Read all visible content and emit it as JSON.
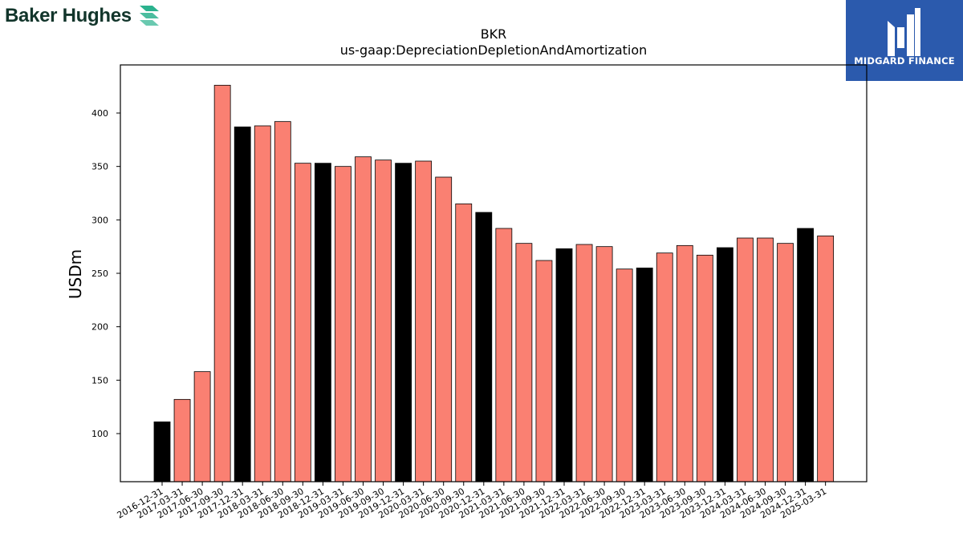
{
  "header": {
    "company_logo_text": "Baker Hughes",
    "badge_text": "MIDGARD FINANCE"
  },
  "colors": {
    "bar_default": "#fa8072",
    "bar_highlight": "#000000",
    "bar_edge": "#000000",
    "badge_bg": "#2b5aad",
    "brand_mark": "#2bb28e"
  },
  "chart_data": {
    "type": "bar",
    "title": "BKR",
    "subtitle": "us-gaap:DepreciationDepletionAndAmortization",
    "xlabel": "",
    "ylabel": "USDm",
    "ylim": [
      55,
      445
    ],
    "yticks": [
      100,
      150,
      200,
      250,
      300,
      350,
      400
    ],
    "grid": false,
    "categories": [
      "2016-12-31",
      "2017-03-31",
      "2017-06-30",
      "2017-09-30",
      "2017-12-31",
      "2018-03-31",
      "2018-06-30",
      "2018-09-30",
      "2018-12-31",
      "2019-03-31",
      "2019-06-30",
      "2019-09-30",
      "2019-12-31",
      "2020-03-31",
      "2020-06-30",
      "2020-09-30",
      "2020-12-31",
      "2021-03-31",
      "2021-06-30",
      "2021-09-30",
      "2021-12-31",
      "2022-03-31",
      "2022-06-30",
      "2022-09-30",
      "2022-12-31",
      "2023-03-31",
      "2023-06-30",
      "2023-09-30",
      "2023-12-31",
      "2024-03-31",
      "2024-06-30",
      "2024-09-30",
      "2024-12-31",
      "2025-03-31"
    ],
    "values": [
      111,
      132,
      158,
      426,
      387,
      388,
      392,
      353,
      353,
      350,
      359,
      356,
      353,
      355,
      340,
      315,
      307,
      292,
      278,
      262,
      273,
      277,
      275,
      254,
      255,
      269,
      276,
      267,
      274,
      283,
      283,
      278,
      292,
      285
    ],
    "highlight": [
      true,
      false,
      false,
      false,
      true,
      false,
      false,
      false,
      true,
      false,
      false,
      false,
      true,
      false,
      false,
      false,
      true,
      false,
      false,
      false,
      true,
      false,
      false,
      false,
      true,
      false,
      false,
      false,
      true,
      false,
      false,
      false,
      true,
      false
    ]
  }
}
